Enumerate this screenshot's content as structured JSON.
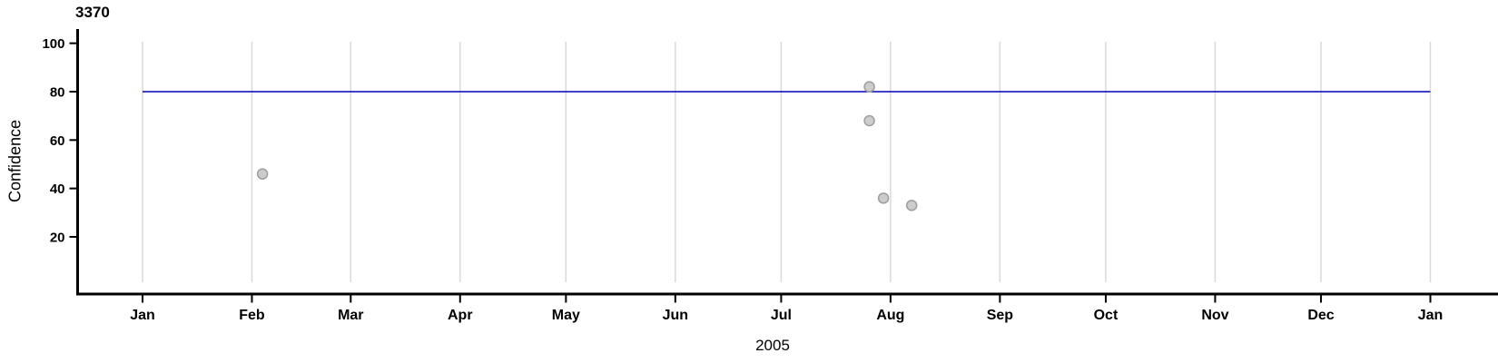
{
  "chart_data": {
    "type": "scatter",
    "title": "3370",
    "xlabel": "2005",
    "ylabel": "Confidence",
    "x_axis": {
      "kind": "date",
      "year": "2005",
      "tick_labels": [
        "Jan",
        "Feb",
        "Mar",
        "Apr",
        "May",
        "Jun",
        "Jul",
        "Aug",
        "Sep",
        "Oct",
        "Nov",
        "Dec",
        "Jan"
      ],
      "range_days": [
        0,
        365
      ]
    },
    "y_axis": {
      "ticks": [
        20,
        40,
        60,
        80,
        100
      ],
      "range": [
        0,
        105
      ],
      "label": "Confidence"
    },
    "reference_line": {
      "value": 80,
      "color": "#0000bb"
    },
    "points": [
      {
        "date": "Feb 4",
        "days_from_jan1": 34,
        "confidence": 46
      },
      {
        "date": "Jul 26",
        "days_from_jan1": 206,
        "confidence": 82
      },
      {
        "date": "Jul 26",
        "days_from_jan1": 206,
        "confidence": 68
      },
      {
        "date": "Jul 30",
        "days_from_jan1": 210,
        "confidence": 36
      },
      {
        "date": "Aug 7",
        "days_from_jan1": 218,
        "confidence": 33
      }
    ],
    "style": {
      "point_fill": "#cccccc",
      "point_stroke": "#9e9e9e",
      "point_radius": 5.5,
      "gridline_color": "#d9d9d9",
      "axis_color": "#000000",
      "background": "#ffffff"
    }
  }
}
